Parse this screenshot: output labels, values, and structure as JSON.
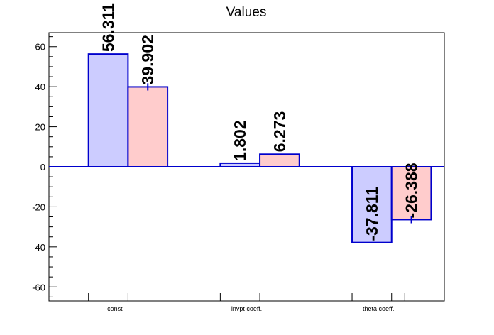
{
  "chart_data": {
    "type": "bar",
    "title": "Values",
    "categories": [
      "const",
      "invpt coeff.",
      "theta coeff."
    ],
    "ylim": [
      -67,
      67
    ],
    "yticks": [
      -60,
      -40,
      -20,
      0,
      20,
      40,
      60
    ],
    "grid": false,
    "series": [
      {
        "values": [
          56.311,
          1.802,
          -37.811
        ],
        "labels": [
          "56.311",
          "1.802",
          "-37.811"
        ],
        "errors": [
          0,
          0,
          0
        ],
        "fill": "#ccccff",
        "edge": "#0000cc"
      },
      {
        "values": [
          39.902,
          6.273,
          -26.388
        ],
        "labels": [
          "39.902",
          "6.273",
          "-26.388"
        ],
        "errors": [
          1.8,
          0,
          1.8
        ],
        "fill": "#ffcccc",
        "edge": "#0000cc"
      }
    ]
  }
}
